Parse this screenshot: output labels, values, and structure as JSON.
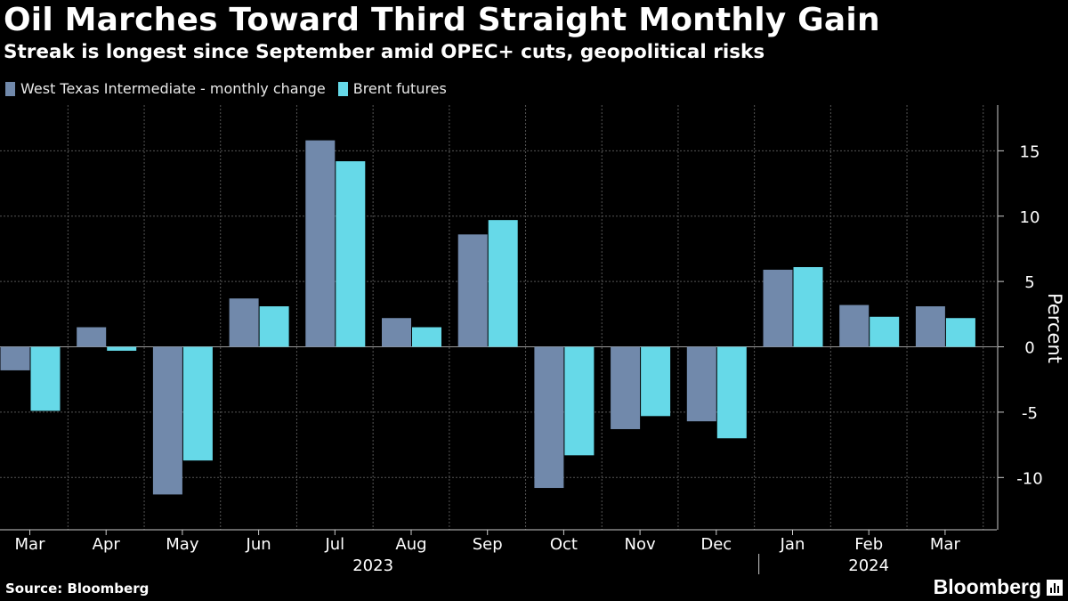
{
  "header": {
    "title": "Oil Marches Toward Third Straight Monthly Gain",
    "subtitle": "Streak is longest since September amid OPEC+ cuts, geopolitical risks"
  },
  "footer": {
    "source": "Source: Bloomberg",
    "brand": "Bloomberg"
  },
  "colors": {
    "wti": "#7189AB",
    "brent": "#66D9E8",
    "background": "#000000",
    "grid": "#555555"
  },
  "chart_data": {
    "type": "bar",
    "title": "Oil Marches Toward Third Straight Monthly Gain",
    "subtitle": "Streak is longest since September amid OPEC+ cuts, geopolitical risks",
    "categories": [
      "Mar",
      "Apr",
      "May",
      "Jun",
      "Jul",
      "Aug",
      "Sep",
      "Oct",
      "Nov",
      "Dec",
      "Jan",
      "Feb",
      "Mar"
    ],
    "year_groups": [
      {
        "label": "2023",
        "start": 0,
        "end": 9
      },
      {
        "label": "2024",
        "start": 10,
        "end": 12
      }
    ],
    "series": [
      {
        "name": "West Texas Intermediate - monthly change",
        "color": "#7189AB",
        "values": [
          -1.8,
          1.5,
          -11.3,
          3.7,
          15.8,
          2.2,
          8.6,
          -10.8,
          -6.3,
          -5.7,
          5.9,
          3.2,
          3.1
        ]
      },
      {
        "name": "Brent futures",
        "color": "#66D9E8",
        "values": [
          -4.9,
          -0.3,
          -8.7,
          3.1,
          14.2,
          1.5,
          9.7,
          -8.3,
          -5.3,
          -7.0,
          6.1,
          2.3,
          2.2
        ]
      }
    ],
    "ylabel": "Percent",
    "xlabel": "",
    "ylim": [
      -14,
      18.5
    ],
    "yticks": [
      15,
      10,
      5,
      0,
      -5,
      -10
    ],
    "ytick_labels": [
      "15",
      "10",
      "5",
      "0",
      "-5",
      "-10"
    ],
    "grid": true,
    "legend": "top-left"
  }
}
